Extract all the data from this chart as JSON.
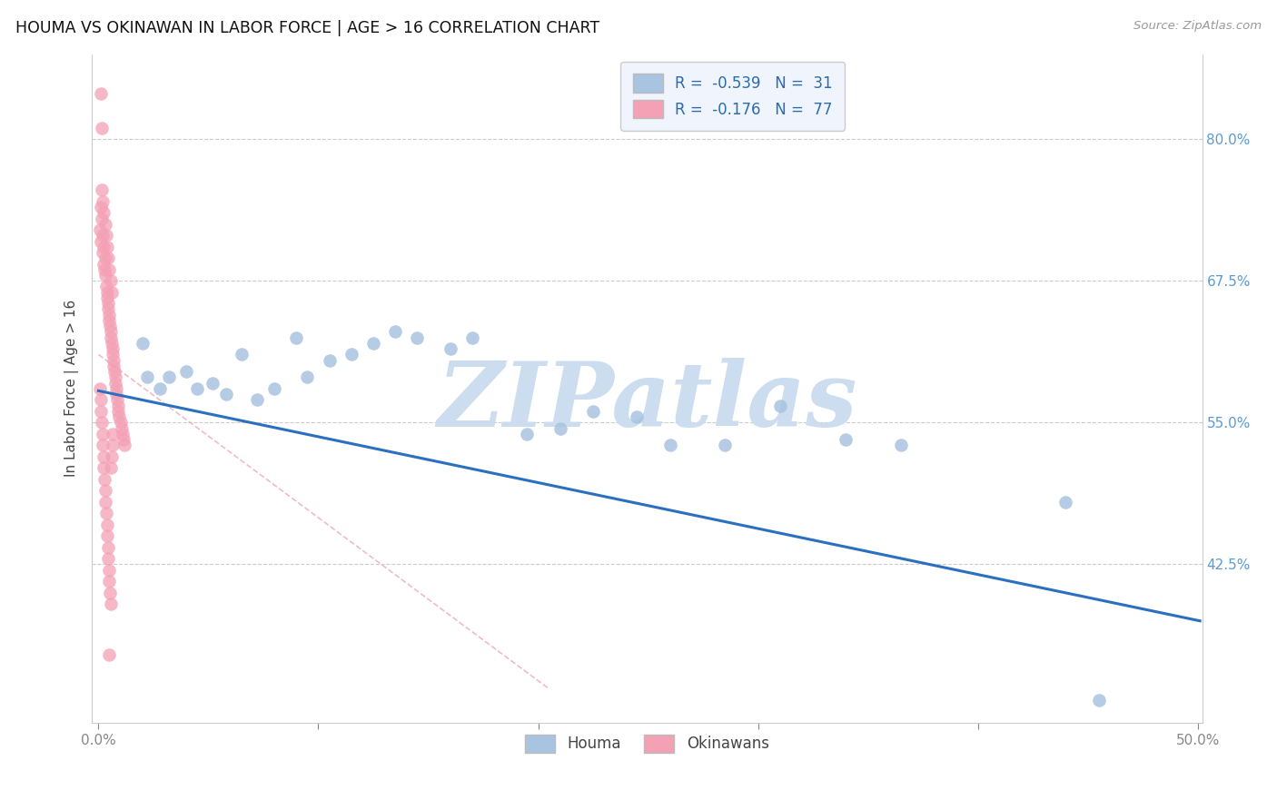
{
  "title": "HOUMA VS OKINAWAN IN LABOR FORCE | AGE > 16 CORRELATION CHART",
  "source": "Source: ZipAtlas.com",
  "ylabel": "In Labor Force | Age > 16",
  "xlim": [
    -0.003,
    0.502
  ],
  "ylim": [
    0.285,
    0.875
  ],
  "xticks": [
    0.0,
    0.1,
    0.2,
    0.3,
    0.4,
    0.5
  ],
  "xticklabels": [
    "0.0%",
    "",
    "",
    "",
    "",
    "50.0%"
  ],
  "yticks": [
    0.425,
    0.55,
    0.675,
    0.8
  ],
  "yticklabels": [
    "42.5%",
    "55.0%",
    "67.5%",
    "80.0%"
  ],
  "houma_R": -0.539,
  "houma_N": 31,
  "okinawan_R": -0.176,
  "okinawan_N": 77,
  "houma_color": "#a8c4e0",
  "okinawan_color": "#f4a0b5",
  "houma_line_color": "#2b70c0",
  "okinawan_line_color": "#e8a0b0",
  "houma_x": [
    0.02,
    0.022,
    0.028,
    0.032,
    0.04,
    0.045,
    0.052,
    0.058,
    0.065,
    0.072,
    0.08,
    0.09,
    0.095,
    0.105,
    0.115,
    0.125,
    0.135,
    0.145,
    0.16,
    0.17,
    0.195,
    0.21,
    0.225,
    0.245,
    0.26,
    0.285,
    0.31,
    0.34,
    0.365,
    0.44,
    0.455
  ],
  "houma_y": [
    0.62,
    0.59,
    0.58,
    0.59,
    0.595,
    0.58,
    0.585,
    0.575,
    0.61,
    0.57,
    0.58,
    0.625,
    0.59,
    0.605,
    0.61,
    0.62,
    0.63,
    0.625,
    0.615,
    0.625,
    0.54,
    0.545,
    0.56,
    0.555,
    0.53,
    0.53,
    0.565,
    0.535,
    0.53,
    0.48,
    0.305
  ],
  "okinawan_x": [
    0.0008,
    0.001,
    0.0012,
    0.0015,
    0.0018,
    0.002,
    0.0022,
    0.0025,
    0.0028,
    0.003,
    0.0033,
    0.0035,
    0.0038,
    0.004,
    0.0042,
    0.0045,
    0.0048,
    0.005,
    0.0052,
    0.0055,
    0.0058,
    0.006,
    0.0063,
    0.0065,
    0.0068,
    0.007,
    0.0072,
    0.0075,
    0.0078,
    0.008,
    0.0082,
    0.0085,
    0.0088,
    0.009,
    0.0095,
    0.01,
    0.0105,
    0.011,
    0.0115,
    0.012,
    0.0015,
    0.002,
    0.0025,
    0.003,
    0.0035,
    0.004,
    0.0045,
    0.005,
    0.0055,
    0.006,
    0.0008,
    0.001,
    0.0012,
    0.0015,
    0.0018,
    0.002,
    0.0022,
    0.0025,
    0.0028,
    0.003,
    0.0033,
    0.0035,
    0.0038,
    0.004,
    0.0042,
    0.0045,
    0.0048,
    0.005,
    0.0052,
    0.0055,
    0.0058,
    0.006,
    0.0063,
    0.0065,
    0.005,
    0.001,
    0.0015
  ],
  "okinawan_y": [
    0.72,
    0.74,
    0.71,
    0.73,
    0.7,
    0.715,
    0.69,
    0.705,
    0.685,
    0.695,
    0.68,
    0.67,
    0.665,
    0.66,
    0.655,
    0.65,
    0.645,
    0.64,
    0.635,
    0.63,
    0.625,
    0.62,
    0.615,
    0.61,
    0.605,
    0.6,
    0.595,
    0.59,
    0.585,
    0.58,
    0.575,
    0.57,
    0.565,
    0.56,
    0.555,
    0.55,
    0.545,
    0.54,
    0.535,
    0.53,
    0.755,
    0.745,
    0.735,
    0.725,
    0.715,
    0.705,
    0.695,
    0.685,
    0.675,
    0.665,
    0.58,
    0.57,
    0.56,
    0.55,
    0.54,
    0.53,
    0.52,
    0.51,
    0.5,
    0.49,
    0.48,
    0.47,
    0.46,
    0.45,
    0.44,
    0.43,
    0.42,
    0.41,
    0.4,
    0.39,
    0.51,
    0.52,
    0.53,
    0.54,
    0.345,
    0.84,
    0.81
  ],
  "houma_trend_x": [
    0.0,
    0.501
  ],
  "houma_trend_y": [
    0.578,
    0.375
  ],
  "okinawan_trend_x": [
    0.0,
    0.205
  ],
  "okinawan_trend_y": [
    0.61,
    0.315
  ],
  "watermark_text": "ZIPatlas",
  "watermark_color": "#ccddf0",
  "grid_color": "#cccccc",
  "legend_bg": "#f0f4fc",
  "legend_text_color": "#2b6cb0",
  "legend_r_text_color": "#2b6cb0"
}
